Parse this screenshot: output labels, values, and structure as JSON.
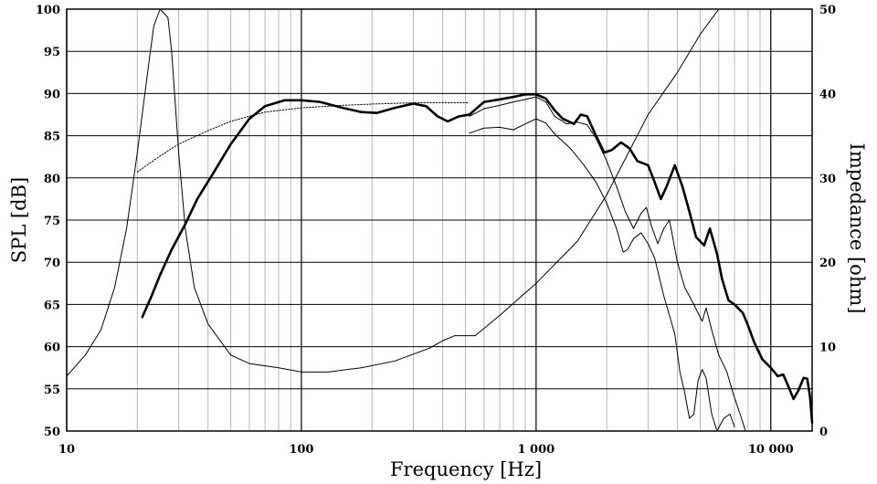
{
  "chart_data": {
    "type": "line",
    "x_scale": "log",
    "xlim": [
      10,
      15000
    ],
    "ylim_left": [
      50,
      100
    ],
    "ylim_right": [
      0,
      50
    ],
    "grid": true,
    "xlabel": "Frequency [Hz]",
    "ylabel_left": "SPL [dB]",
    "ylabel_right": "Impedance [ohm]",
    "x_ticks": [
      {
        "value": 10,
        "label": "10"
      },
      {
        "value": 100,
        "label": "100"
      },
      {
        "value": 1000,
        "label": "1 000"
      },
      {
        "value": 10000,
        "label": "10 000"
      }
    ],
    "y_ticks_left": [
      "100",
      "95",
      "90",
      "85",
      "80",
      "75",
      "70",
      "65",
      "60",
      "55",
      "50"
    ],
    "y_ticks_right": [
      "50",
      "40",
      "30",
      "20",
      "10",
      "0"
    ],
    "series": [
      {
        "axis": "left",
        "style": "bold",
        "points": [
          [
            21,
            63.5
          ],
          [
            23,
            66
          ],
          [
            25,
            68.5
          ],
          [
            28,
            71.5
          ],
          [
            32,
            74.5
          ],
          [
            36,
            77.5
          ],
          [
            42,
            80.5
          ],
          [
            50,
            84
          ],
          [
            60,
            87
          ],
          [
            70,
            88.5
          ],
          [
            85,
            89.2
          ],
          [
            100,
            89.2
          ],
          [
            120,
            89
          ],
          [
            150,
            88.3
          ],
          [
            180,
            87.8
          ],
          [
            210,
            87.7
          ],
          [
            250,
            88.3
          ],
          [
            300,
            88.8
          ],
          [
            340,
            88.5
          ],
          [
            380,
            87.3
          ],
          [
            420,
            86.7
          ],
          [
            470,
            87.3
          ],
          [
            520,
            87.5
          ],
          [
            600,
            89
          ],
          [
            700,
            89.3
          ],
          [
            800,
            89.6
          ],
          [
            900,
            89.9
          ],
          [
            1000,
            89.9
          ],
          [
            1100,
            89.4
          ],
          [
            1200,
            88
          ],
          [
            1300,
            87
          ],
          [
            1450,
            86.4
          ],
          [
            1550,
            87.5
          ],
          [
            1650,
            87.3
          ],
          [
            1800,
            85
          ],
          [
            1950,
            83
          ],
          [
            2100,
            83.3
          ],
          [
            2300,
            84.2
          ],
          [
            2500,
            83.5
          ],
          [
            2700,
            82
          ],
          [
            3000,
            81.5
          ],
          [
            3200,
            79.5
          ],
          [
            3400,
            77.5
          ],
          [
            3600,
            79
          ],
          [
            3900,
            81.5
          ],
          [
            4200,
            79
          ],
          [
            4500,
            76
          ],
          [
            4800,
            73
          ],
          [
            5200,
            72
          ],
          [
            5500,
            74
          ],
          [
            5900,
            71
          ],
          [
            6200,
            68
          ],
          [
            6600,
            65.5
          ],
          [
            7000,
            65
          ],
          [
            7600,
            64
          ],
          [
            8000,
            62.5
          ],
          [
            8500,
            60.5
          ],
          [
            9200,
            58.5
          ],
          [
            10000,
            57.5
          ],
          [
            10700,
            56.5
          ],
          [
            11300,
            56.7
          ],
          [
            12000,
            55
          ],
          [
            12500,
            53.8
          ],
          [
            13100,
            54.8
          ],
          [
            13800,
            56.3
          ],
          [
            14300,
            56.2
          ],
          [
            14700,
            54
          ],
          [
            15000,
            51
          ]
        ]
      },
      {
        "axis": "left",
        "style": "thin",
        "points": [
          [
            520,
            87.3
          ],
          [
            600,
            88.2
          ],
          [
            700,
            88.6
          ],
          [
            800,
            89
          ],
          [
            900,
            89.3
          ],
          [
            1000,
            89.6
          ],
          [
            1100,
            89
          ],
          [
            1200,
            87.3
          ],
          [
            1350,
            86.4
          ],
          [
            1500,
            86.6
          ],
          [
            1650,
            86.3
          ],
          [
            1800,
            84.7
          ],
          [
            2000,
            82
          ],
          [
            2200,
            79
          ],
          [
            2400,
            76
          ],
          [
            2600,
            74
          ],
          [
            2800,
            75.8
          ],
          [
            2950,
            76.5
          ],
          [
            3100,
            74.3
          ],
          [
            3300,
            72.2
          ],
          [
            3500,
            74
          ],
          [
            3700,
            75
          ],
          [
            4000,
            70
          ],
          [
            4300,
            67
          ],
          [
            4700,
            65
          ],
          [
            5100,
            63
          ],
          [
            5300,
            64.6
          ],
          [
            5600,
            62
          ],
          [
            6000,
            59
          ],
          [
            6500,
            57
          ],
          [
            6900,
            54.5
          ],
          [
            7400,
            52
          ],
          [
            7800,
            50
          ]
        ]
      },
      {
        "axis": "left",
        "style": "thin",
        "points": [
          [
            520,
            85.3
          ],
          [
            600,
            85.9
          ],
          [
            700,
            86
          ],
          [
            800,
            85.7
          ],
          [
            900,
            86.4
          ],
          [
            1000,
            87
          ],
          [
            1100,
            86.5
          ],
          [
            1200,
            85.2
          ],
          [
            1400,
            83.5
          ],
          [
            1600,
            81.5
          ],
          [
            1800,
            79.5
          ],
          [
            2000,
            77
          ],
          [
            2200,
            74
          ],
          [
            2350,
            71.2
          ],
          [
            2450,
            71.5
          ],
          [
            2600,
            72.8
          ],
          [
            2800,
            73.5
          ],
          [
            3000,
            72.2
          ],
          [
            3200,
            70.5
          ],
          [
            3500,
            66
          ],
          [
            3900,
            61.5
          ],
          [
            4100,
            57
          ],
          [
            4300,
            54.5
          ],
          [
            4500,
            51.5
          ],
          [
            4700,
            52
          ],
          [
            4900,
            56
          ],
          [
            5100,
            57.3
          ],
          [
            5300,
            56.3
          ],
          [
            5600,
            52
          ],
          [
            5900,
            50
          ],
          [
            6300,
            51.5
          ],
          [
            6700,
            52
          ],
          [
            7000,
            50.5
          ]
        ]
      },
      {
        "axis": "left",
        "style": "dotted",
        "points": [
          [
            20,
            80.7
          ],
          [
            25,
            82.6
          ],
          [
            30,
            84
          ],
          [
            40,
            85.6
          ],
          [
            50,
            86.7
          ],
          [
            70,
            87.8
          ],
          [
            100,
            88.3
          ],
          [
            150,
            88.6
          ],
          [
            200,
            88.75
          ],
          [
            300,
            88.9
          ],
          [
            400,
            88.9
          ],
          [
            510,
            88.9
          ]
        ]
      },
      {
        "axis": "right",
        "style": "thin",
        "points": [
          [
            10,
            6.5
          ],
          [
            12,
            9
          ],
          [
            14,
            12
          ],
          [
            16,
            17
          ],
          [
            18,
            24
          ],
          [
            20,
            33
          ],
          [
            22,
            42
          ],
          [
            23.5,
            48
          ],
          [
            25,
            50
          ],
          [
            27,
            49
          ],
          [
            28,
            45
          ],
          [
            30,
            33
          ],
          [
            32,
            24
          ],
          [
            35,
            17
          ],
          [
            40,
            12.7
          ],
          [
            50,
            9
          ],
          [
            60,
            8
          ],
          [
            80,
            7.5
          ],
          [
            100,
            7
          ],
          [
            130,
            7
          ],
          [
            180,
            7.5
          ],
          [
            250,
            8.3
          ],
          [
            350,
            9.8
          ],
          [
            400,
            10.7
          ],
          [
            450,
            11.3
          ],
          [
            550,
            11.3
          ],
          [
            700,
            13.7
          ],
          [
            1000,
            17.5
          ],
          [
            1500,
            22.5
          ],
          [
            2000,
            28
          ],
          [
            3000,
            37.5
          ],
          [
            4000,
            42.5
          ],
          [
            5000,
            47
          ],
          [
            6000,
            50
          ]
        ]
      }
    ]
  }
}
